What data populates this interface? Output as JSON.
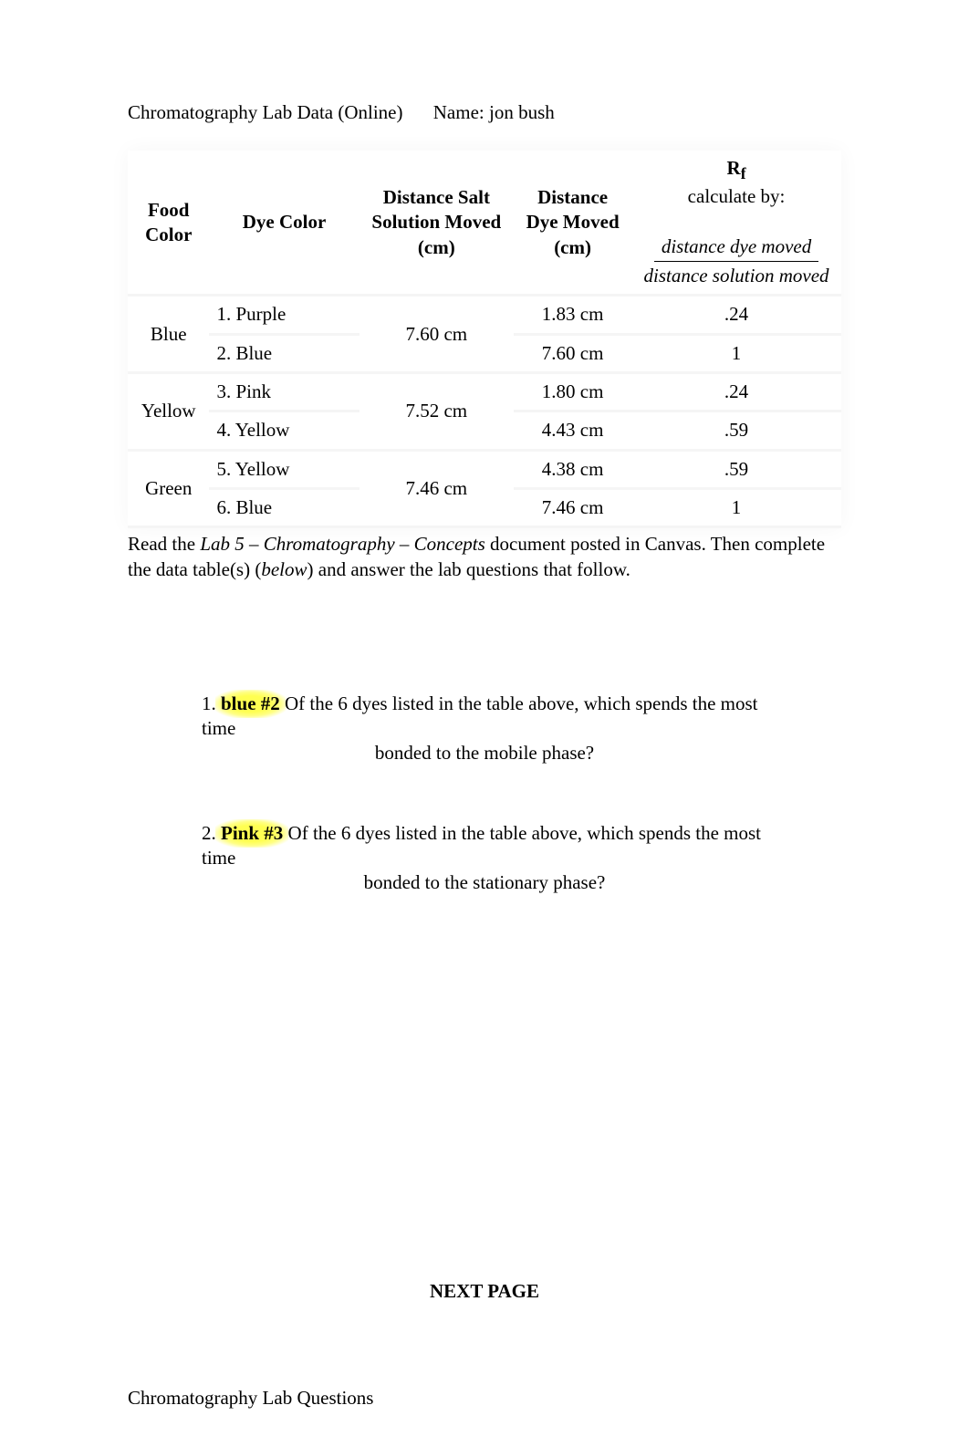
{
  "header": {
    "title": "Chromatography Lab Data (Online)",
    "name_label": "Name:",
    "name_value": "jon bush"
  },
  "table": {
    "headers": {
      "food_color": "Food Color",
      "dye_color": "Dye Color",
      "distance_salt": "Distance Salt Solution Moved (cm)",
      "distance_dye": "Distance Dye Moved (cm)",
      "rf_symbol": "R",
      "rf_sub": "f",
      "rf_calc_by": "calculate by:",
      "rf_num": "distance dye moved",
      "rf_den": "distance solution moved"
    },
    "groups": [
      {
        "food_color": "Blue",
        "salt": "7.60 cm",
        "rows": [
          {
            "dye": "1. Purple",
            "dist": "1.83 cm",
            "rf": ".24"
          },
          {
            "dye": "2. Blue",
            "dist": "7.60 cm",
            "rf": "1"
          }
        ]
      },
      {
        "food_color": "Yellow",
        "salt": "7.52 cm",
        "rows": [
          {
            "dye": "3. Pink",
            "dist": "1.80 cm",
            "rf": ".24"
          },
          {
            "dye": "4. Yellow",
            "dist": "4.43 cm",
            "rf": ".59"
          }
        ]
      },
      {
        "food_color": "Green",
        "salt": "7.46 cm",
        "rows": [
          {
            "dye": "5. Yellow",
            "dist": "4.38 cm",
            "rf": ".59"
          },
          {
            "dye": "6. Blue",
            "dist": "7.46 cm",
            "rf": "1"
          }
        ]
      }
    ]
  },
  "instructions": {
    "part1": "Read the ",
    "italic1": "Lab 5 – Chromatography – Concepts",
    "part2": " document posted in Canvas. Then complete the data table(s) (",
    "italic2": "below",
    "part3": ") and answer the lab questions that follow."
  },
  "questions": [
    {
      "num": "1.",
      "highlight": "blue #2",
      "rest1": " Of the 6 dyes listed in the table above, which spends the most time",
      "rest2": "bonded to the mobile phase?"
    },
    {
      "num": "2.",
      "highlight": "Pink #3",
      "rest1": " Of the 6 dyes listed in the table above, which spends the most time",
      "rest2": "bonded to the stationary phase?"
    }
  ],
  "next_page": "NEXT PAGE",
  "footer_title": "Chromatography Lab Questions",
  "colors": {
    "text": "#000000",
    "bg": "#ffffff",
    "row_sep": "#f5f5f5",
    "highlight": "#ffff52"
  }
}
